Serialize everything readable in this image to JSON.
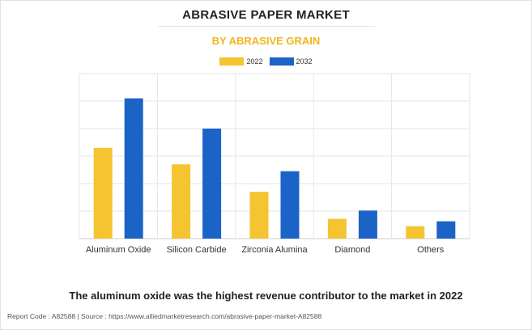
{
  "header": {
    "title": "ABRASIVE PAPER MARKET",
    "subtitle": "BY ABRASIVE GRAIN"
  },
  "colors": {
    "series_2022": "#f4c431",
    "series_2032": "#1b63c6",
    "subtitle": "#f2b51d",
    "grid": "#e6e6e6"
  },
  "chart_data": {
    "type": "bar",
    "title": "ABRASIVE PAPER MARKET",
    "subtitle": "BY ABRASIVE GRAIN",
    "categories": [
      "Aluminum Oxide",
      "Silicon Carbide",
      "Zirconia Alumina",
      "Diamond",
      "Others"
    ],
    "series": [
      {
        "name": "2022",
        "color": "#f4c431",
        "values": [
          3.3,
          2.7,
          1.7,
          0.72,
          0.45
        ]
      },
      {
        "name": "2032",
        "color": "#1b63c6",
        "values": [
          5.1,
          4.0,
          2.45,
          1.02,
          0.63
        ]
      }
    ],
    "ylim": [
      0,
      6
    ],
    "grid": true,
    "legend_position": "top-center",
    "y_tick_labels_shown": false
  },
  "caption": "The aluminum oxide was the highest revenue contributor to the market in 2022",
  "footer": "Report Code : A82588  |  Source : https://www.alliedmarketresearch.com/abrasive-paper-market-A82588"
}
